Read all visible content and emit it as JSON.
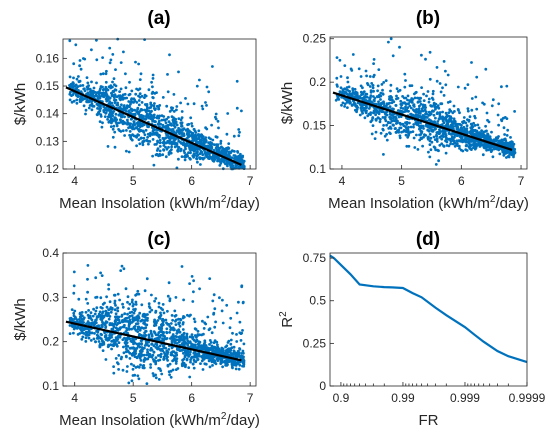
{
  "colors": {
    "points": "#0072BD",
    "fit_line": "#000000",
    "curve": "#0072BD"
  },
  "chart_data": [
    {
      "type": "scatter",
      "title": "(a)",
      "xlabel": "Mean Insolation (kWh/m2/day)",
      "ylabel": "$/kWh",
      "xlim": [
        3.8,
        7.1
      ],
      "ylim": [
        0.12,
        0.167
      ],
      "xticks": [
        4,
        5,
        6,
        7
      ],
      "yticks": [
        0.12,
        0.13,
        0.14,
        0.15,
        0.16
      ],
      "ytick_labels": [
        "0.12",
        "0.13",
        "0.14",
        "0.15",
        "0.16"
      ],
      "fit_line": {
        "x": [
          3.85,
          6.85
        ],
        "y": [
          0.1495,
          0.1215
        ]
      },
      "point_cloud": {
        "n_points": 1500,
        "x_range": [
          3.9,
          6.9
        ],
        "spread": [
          0.0025,
          0.0065
        ],
        "sparse_upper_tail": 0.012
      }
    },
    {
      "type": "scatter",
      "title": "(b)",
      "xlabel": "Mean Insolation (kWh/m2/day)",
      "ylabel": "$/kWh",
      "xlim": [
        3.8,
        7.1
      ],
      "ylim": [
        0.1,
        0.252
      ],
      "xticks": [
        4,
        5,
        6,
        7
      ],
      "yticks": [
        0.1,
        0.15,
        0.2,
        0.25
      ],
      "ytick_labels": [
        "0.1",
        "0.15",
        "0.2",
        "0.25"
      ],
      "fit_line": {
        "x": [
          3.85,
          6.85
        ],
        "y": [
          0.188,
          0.122
        ]
      },
      "point_cloud": {
        "n_points": 1500,
        "x_range": [
          3.9,
          6.9
        ],
        "spread": [
          0.006,
          0.02
        ],
        "sparse_upper_tail": 0.035
      }
    },
    {
      "type": "scatter",
      "title": "(c)",
      "xlabel": "Mean Insolation (kWh/m2/day)",
      "ylabel": "$/kWh",
      "xlim": [
        3.8,
        7.1
      ],
      "ylim": [
        0.1,
        0.4
      ],
      "xticks": [
        4,
        5,
        6,
        7
      ],
      "yticks": [
        0.1,
        0.2,
        0.3,
        0.4
      ],
      "ytick_labels": [
        "0.1",
        "0.2",
        "0.3",
        "0.4"
      ],
      "fit_line": {
        "x": [
          3.85,
          6.85
        ],
        "y": [
          0.245,
          0.158
        ]
      },
      "point_cloud": {
        "n_points": 1500,
        "x_range": [
          3.9,
          6.9
        ],
        "spread": [
          0.015,
          0.055
        ],
        "sparse_upper_tail": 0.07
      }
    },
    {
      "type": "line",
      "title": "(d)",
      "xlabel": "FR",
      "ylabel": "R2",
      "xscale": "-log10(1-FR)",
      "xlim": [
        0.85,
        0.9999
      ],
      "ylim": [
        0,
        0.78
      ],
      "xticks": [
        0.9,
        0.99,
        0.999,
        0.9999
      ],
      "xtick_labels": [
        "0.9",
        "0.99",
        "0.999",
        "0.9999"
      ],
      "yticks": [
        0,
        0.25,
        0.5,
        0.75
      ],
      "ytick_labels": [
        "0",
        "0.25",
        "0.5",
        "0.75"
      ],
      "x": [
        0.85,
        0.87,
        0.9,
        0.93,
        0.95,
        0.97,
        0.98,
        0.985,
        0.99,
        0.993,
        0.995,
        0.997,
        0.998,
        0.999,
        0.9993,
        0.9995,
        0.9997,
        0.9998,
        0.9999
      ],
      "y": [
        0.765,
        0.75,
        0.71,
        0.655,
        0.595,
        0.585,
        0.58,
        0.578,
        0.575,
        0.545,
        0.52,
        0.46,
        0.415,
        0.345,
        0.3,
        0.26,
        0.205,
        0.175,
        0.14
      ]
    }
  ]
}
